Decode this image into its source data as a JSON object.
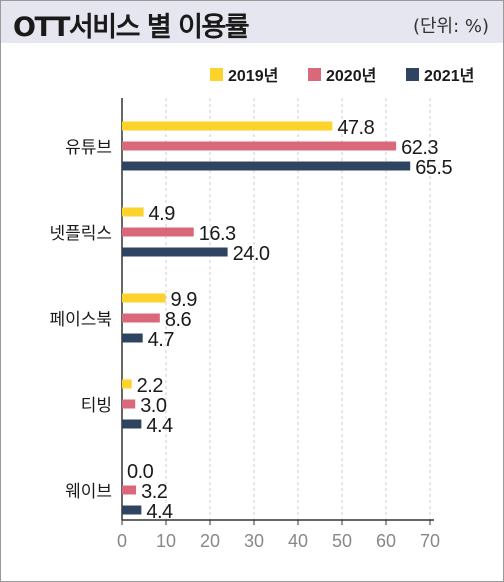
{
  "title": "OTT서비스 별 이용률",
  "unit_note": "(단위: %)",
  "colors": {
    "series_2019": "#fdd22b",
    "series_2020": "#d9697a",
    "series_2021": "#2f4460",
    "axis": "#333333",
    "grid": "#cfcfcf",
    "header_bg": "#e6e6f0"
  },
  "chart_data": {
    "type": "bar",
    "orientation": "horizontal",
    "categories": [
      "유튜브",
      "넷플릭스",
      "페이스북",
      "티빙",
      "웨이브"
    ],
    "series": [
      {
        "name": "2019년",
        "values": [
          47.8,
          4.9,
          9.9,
          2.2,
          0.0
        ]
      },
      {
        "name": "2020년",
        "values": [
          62.3,
          16.3,
          8.6,
          3.0,
          3.2
        ]
      },
      {
        "name": "2021년",
        "values": [
          65.5,
          24.0,
          4.7,
          4.4,
          4.4
        ]
      }
    ],
    "value_labels": [
      [
        "47.8",
        "4.9",
        "9.9",
        "2.2",
        "0.0"
      ],
      [
        "62.3",
        "16.3",
        "8.6",
        "3.0",
        "3.2"
      ],
      [
        "65.5",
        "24.0",
        "4.7",
        "4.4",
        "4.4"
      ]
    ],
    "x_ticks": [
      "0",
      "10",
      "20",
      "30",
      "40",
      "50",
      "60",
      "70"
    ],
    "xlim": [
      0,
      70
    ],
    "legend_position": "top-right",
    "grid": "vertical dashed"
  }
}
